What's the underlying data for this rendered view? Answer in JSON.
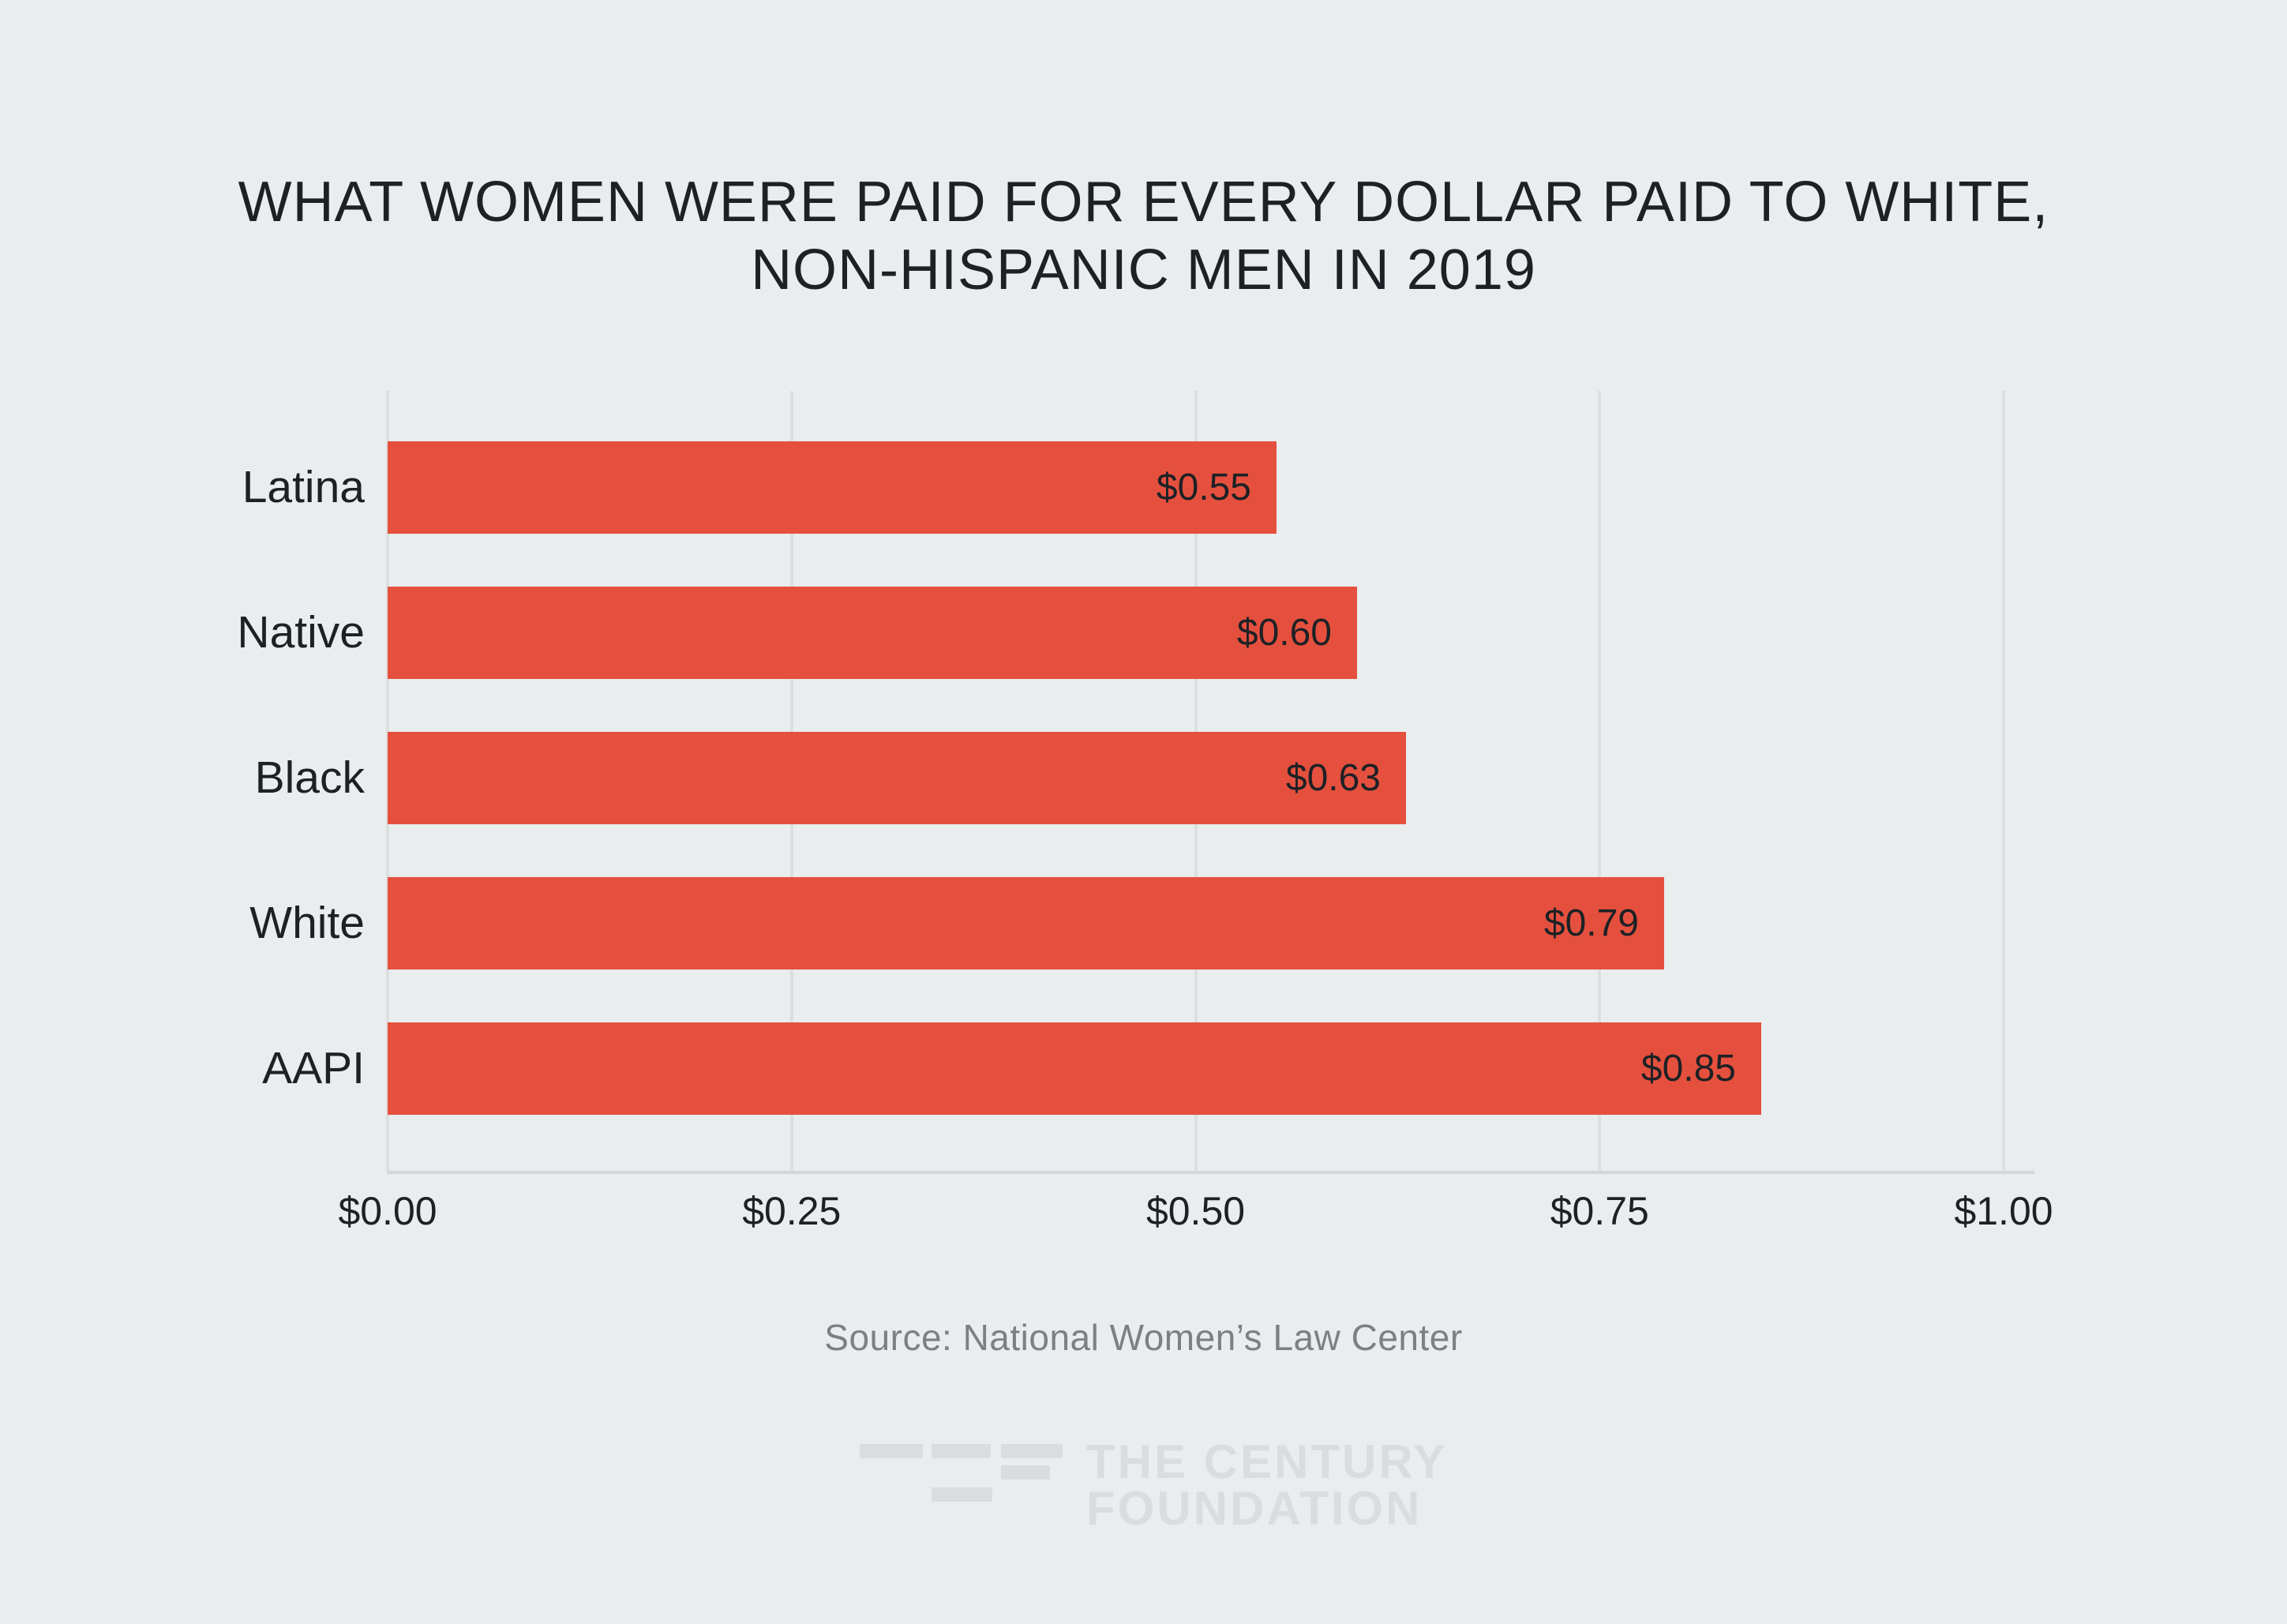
{
  "figure": {
    "title_lines": [
      "WHAT WOMEN WERE PAID FOR EVERY DOLLAR PAID TO WHITE,",
      "NON-HISPANIC MEN IN 2019"
    ],
    "source": "Source: National Women’s Law Center",
    "logo": {
      "line1": "THE CENTURY",
      "line2": "FOUNDATION"
    }
  },
  "chart_data": {
    "type": "bar",
    "orientation": "horizontal",
    "title": "WHAT WOMEN WERE PAID FOR EVERY DOLLAR PAID TO WHITE, NON-HISPANIC MEN IN 2019",
    "categories": [
      "Latina",
      "Native",
      "Black",
      "White",
      "AAPI"
    ],
    "values": [
      0.55,
      0.6,
      0.63,
      0.79,
      0.85
    ],
    "value_labels": [
      "$0.55",
      "$0.60",
      "$0.63",
      "$0.79",
      "$0.85"
    ],
    "xlabel": "",
    "ylabel": "",
    "xlim": [
      0,
      1
    ],
    "x_ticks": [
      0,
      0.25,
      0.5,
      0.75,
      1.0
    ],
    "x_tick_labels": [
      "$0.00",
      "$0.25",
      "$0.50",
      "$0.75",
      "$1.00"
    ],
    "grid": true,
    "legend": false,
    "source": "Source: National Women’s Law Center",
    "colors": {
      "bar": "#e5503e",
      "background": "#e9edee",
      "text": "#1d2125",
      "gridline": "#dcdfe0",
      "axis_line": "#d4d7d8",
      "source_text": "#7b8084",
      "logo": "#d9dde0"
    }
  }
}
